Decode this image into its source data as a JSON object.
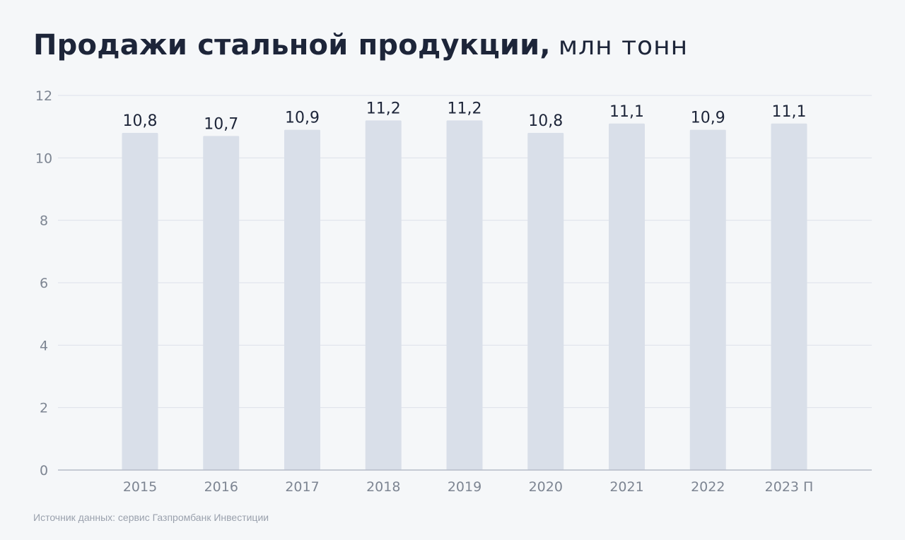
{
  "title": {
    "main": "Продажи стальной продукции,",
    "unit": "млн тонн"
  },
  "source": "Источник данных: сервис Газпромбанк Инвестиции",
  "colors": {
    "background": "#f5f7f9",
    "bar": "#d9dfe9",
    "grid": "#dde2ea",
    "axis": "#b5bcc7",
    "tick_label": "#7d8592",
    "value_label": "#1d2539"
  },
  "chart_data": {
    "type": "bar",
    "categories": [
      "2015",
      "2016",
      "2017",
      "2018",
      "2019",
      "2020",
      "2021",
      "2022",
      "2023 П"
    ],
    "values": [
      10.8,
      10.7,
      10.9,
      11.2,
      11.2,
      10.8,
      11.1,
      10.9,
      11.1
    ],
    "value_labels": [
      "10,8",
      "10,7",
      "10,9",
      "11,2",
      "11,2",
      "10,8",
      "11,1",
      "10,9",
      "11,1"
    ],
    "yticks": [
      0,
      2,
      4,
      6,
      8,
      10,
      12
    ],
    "ylim": [
      0,
      12
    ],
    "grid": true
  }
}
